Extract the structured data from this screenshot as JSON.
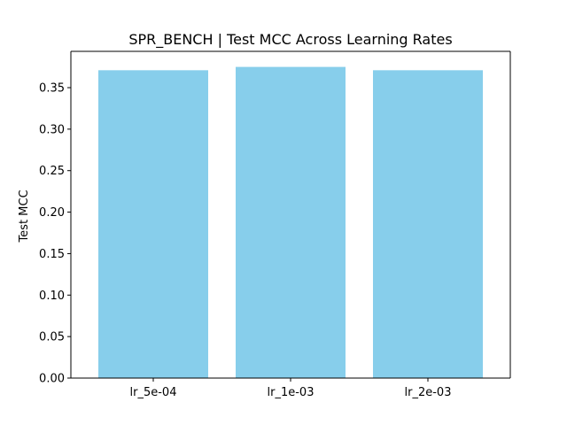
{
  "chart_data": {
    "type": "bar",
    "title": "SPR_BENCH | Test MCC Across Learning Rates",
    "xlabel": "",
    "ylabel": "Test MCC",
    "categories": [
      "lr_5e-04",
      "lr_1e-03",
      "lr_2e-03"
    ],
    "values": [
      0.371,
      0.375,
      0.371
    ],
    "ylim": [
      0,
      0.39375
    ],
    "yticks": [
      "0.00",
      "0.05",
      "0.10",
      "0.15",
      "0.20",
      "0.25",
      "0.30",
      "0.35"
    ],
    "bar_color": "#87ceeb",
    "grid": false,
    "legend": "none"
  }
}
